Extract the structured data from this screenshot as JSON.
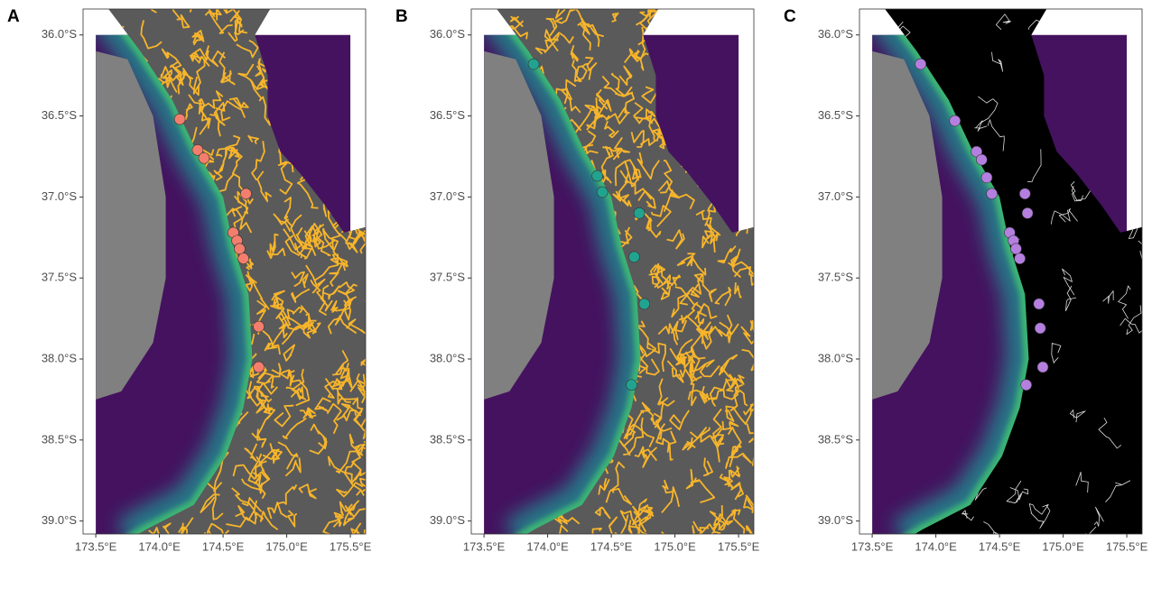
{
  "panels": [
    {
      "label": "A",
      "points": {
        "color": "#f47e6d",
        "x": [
          174.16,
          174.3,
          174.35,
          174.68,
          174.58,
          174.61,
          174.63,
          174.66,
          174.78,
          174.78
        ],
        "y": [
          -36.52,
          -36.71,
          -36.76,
          -36.98,
          -37.22,
          -37.27,
          -37.32,
          -37.38,
          -37.8,
          -38.05
        ]
      }
    },
    {
      "label": "B",
      "points": {
        "color": "#22a38f",
        "x": [
          173.89,
          174.39,
          174.43,
          174.72,
          174.68,
          174.76,
          174.66
        ],
        "y": [
          -36.18,
          -36.87,
          -36.97,
          -37.1,
          -37.37,
          -37.66,
          -38.16
        ]
      }
    },
    {
      "label": "C",
      "points": {
        "color": "#b57fe0",
        "x": [
          173.88,
          174.15,
          174.32,
          174.36,
          174.4,
          174.44,
          174.7,
          174.72,
          174.58,
          174.61,
          174.63,
          174.66,
          174.81,
          174.82,
          174.84,
          174.71
        ],
        "y": [
          -36.18,
          -36.53,
          -36.72,
          -36.77,
          -36.88,
          -36.98,
          -36.98,
          -37.1,
          -37.22,
          -37.27,
          -37.32,
          -37.38,
          -37.66,
          -37.81,
          -38.05,
          -38.16
        ]
      }
    }
  ],
  "xlim": [
    173.4,
    175.62
  ],
  "ylim": [
    -39.08,
    -35.84
  ],
  "xticks": [
    {
      "value": 173.5,
      "label": "173.5°E"
    },
    {
      "value": 174.0,
      "label": "174.0°E"
    },
    {
      "value": 174.5,
      "label": "174.5°E"
    },
    {
      "value": 175.0,
      "label": "175.0°E"
    },
    {
      "value": 175.5,
      "label": "175.5°E"
    }
  ],
  "yticks": [
    {
      "value": -36.0,
      "label": "36.0°S"
    },
    {
      "value": -36.5,
      "label": "36.5°S"
    },
    {
      "value": -37.0,
      "label": "37.0°S"
    },
    {
      "value": -37.5,
      "label": "37.5°S"
    },
    {
      "value": -38.0,
      "label": "38.0°S"
    },
    {
      "value": -38.5,
      "label": "38.5°S"
    },
    {
      "value": -39.0,
      "label": "39.0°S"
    }
  ]
}
